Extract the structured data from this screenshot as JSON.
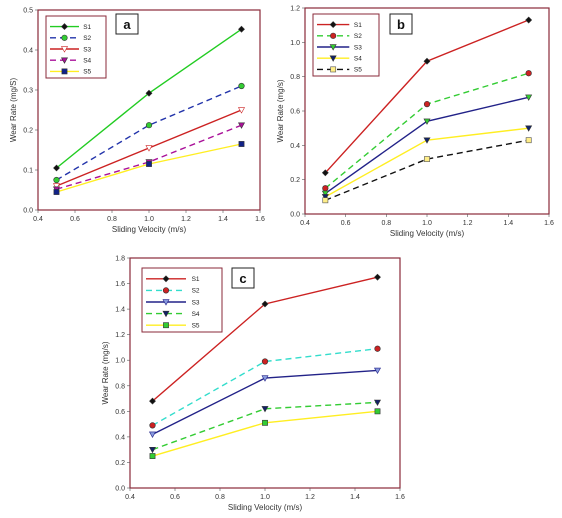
{
  "chart_data": [
    {
      "panel": "a",
      "type": "line",
      "xlabel": "Sliding Velocity (m/s)",
      "ylabel": "Wear Rate (mg/S)",
      "xlim": [
        0.4,
        1.6
      ],
      "ylim": [
        0,
        0.5
      ],
      "xticks": [
        "0.4",
        "0.6",
        "0.8",
        "1.0",
        "1.2",
        "1.4",
        "1.6"
      ],
      "yticks": [
        "0.0",
        "0.1",
        "0.2",
        "0.3",
        "0.4",
        "0.5"
      ],
      "x": [
        0.5,
        1.0,
        1.5
      ],
      "legend_position": "top-left",
      "series": [
        {
          "name": "S1",
          "values": [
            0.105,
            0.292,
            0.452
          ],
          "color": "#22cc22",
          "dash": "",
          "marker": "diamond",
          "marker_color": "#111111"
        },
        {
          "name": "S2",
          "values": [
            0.075,
            0.212,
            0.31
          ],
          "color": "#2233aa",
          "dash": "6,4",
          "marker": "circle",
          "marker_color": "#33cc33"
        },
        {
          "name": "S3",
          "values": [
            0.06,
            0.155,
            0.25
          ],
          "color": "#cc2222",
          "dash": "",
          "marker": "triangle-down",
          "marker_color": "#ffffff",
          "marker_stroke": "#cc2222"
        },
        {
          "name": "S4",
          "values": [
            0.052,
            0.12,
            0.212
          ],
          "color": "#aa1199",
          "dash": "6,4",
          "marker": "triangle-down",
          "marker_color": "#aa1199"
        },
        {
          "name": "S5",
          "values": [
            0.045,
            0.115,
            0.165
          ],
          "color": "#ffee22",
          "dash": "",
          "marker": "square",
          "marker_color": "#112288"
        }
      ]
    },
    {
      "panel": "b",
      "type": "line",
      "xlabel": "Sliding Velocity (m/s)",
      "ylabel": "Wear Rate (mg/s)",
      "xlim": [
        0.4,
        1.6
      ],
      "ylim": [
        0,
        1.2
      ],
      "xticks": [
        "0.4",
        "0.6",
        "0.8",
        "1.0",
        "1.2",
        "1.4",
        "1.6"
      ],
      "yticks": [
        "0.0",
        "0.2",
        "0.4",
        "0.6",
        "0.8",
        "1.0",
        "1.2"
      ],
      "x": [
        0.5,
        1.0,
        1.5
      ],
      "legend_position": "top-left",
      "series": [
        {
          "name": "S1",
          "values": [
            0.24,
            0.89,
            1.13
          ],
          "color": "#cc2222",
          "dash": "",
          "marker": "diamond",
          "marker_color": "#111111"
        },
        {
          "name": "S2",
          "values": [
            0.15,
            0.64,
            0.82
          ],
          "color": "#33cc33",
          "dash": "6,4",
          "marker": "circle",
          "marker_color": "#cc2222"
        },
        {
          "name": "S3",
          "values": [
            0.12,
            0.54,
            0.68
          ],
          "color": "#222288",
          "dash": "",
          "marker": "triangle-down",
          "marker_color": "#33cc33"
        },
        {
          "name": "S4",
          "values": [
            0.1,
            0.43,
            0.5
          ],
          "color": "#ffee22",
          "dash": "",
          "marker": "triangle-down",
          "marker_color": "#112266"
        },
        {
          "name": "S5",
          "values": [
            0.08,
            0.32,
            0.43
          ],
          "color": "#111111",
          "dash": "6,4",
          "marker": "square",
          "marker_color": "#ffee88",
          "marker_stroke": "#555555"
        }
      ]
    },
    {
      "panel": "c",
      "type": "line",
      "xlabel": "Sliding Velocity (m/s)",
      "ylabel": "Wear Rate (mg/s)",
      "xlim": [
        0.4,
        1.6
      ],
      "ylim": [
        0,
        1.8
      ],
      "xticks": [
        "0.4",
        "0.6",
        "0.8",
        "1.0",
        "1.2",
        "1.4",
        "1.6"
      ],
      "yticks": [
        "0.0",
        "0.2",
        "0.4",
        "0.6",
        "0.8",
        "1.0",
        "1.2",
        "1.4",
        "1.6",
        "1.8"
      ],
      "x": [
        0.5,
        1.0,
        1.5
      ],
      "legend_position": "top-left",
      "series": [
        {
          "name": "S1",
          "values": [
            0.68,
            1.44,
            1.65
          ],
          "color": "#cc2222",
          "dash": "",
          "marker": "diamond",
          "marker_color": "#111111"
        },
        {
          "name": "S2",
          "values": [
            0.49,
            0.99,
            1.09
          ],
          "color": "#33ddcc",
          "dash": "6,4",
          "marker": "circle",
          "marker_color": "#cc2222"
        },
        {
          "name": "S3",
          "values": [
            0.42,
            0.86,
            0.92
          ],
          "color": "#222288",
          "dash": "",
          "marker": "triangle-down",
          "marker_color": "#8899dd",
          "marker_stroke": "#222288"
        },
        {
          "name": "S4",
          "values": [
            0.3,
            0.62,
            0.67
          ],
          "color": "#33cc33",
          "dash": "6,4",
          "marker": "triangle-down",
          "marker_color": "#112266"
        },
        {
          "name": "S5",
          "values": [
            0.25,
            0.51,
            0.6
          ],
          "color": "#ffee22",
          "dash": "",
          "marker": "square",
          "marker_color": "#33cc33"
        }
      ]
    }
  ]
}
